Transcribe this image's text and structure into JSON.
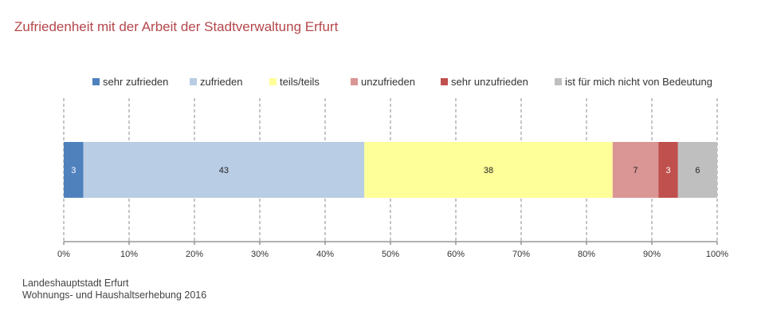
{
  "title": "Zufriedenheit mit der Arbeit der Stadtverwaltung Erfurt",
  "source": {
    "line1": "Landeshauptstadt Erfurt",
    "line2": "Wohnungs- und Haushaltserhebung 2016"
  },
  "chart_data": {
    "type": "bar",
    "orientation": "horizontal",
    "stacked": true,
    "percent_stacked": true,
    "categories": [
      ""
    ],
    "series": [
      {
        "name": "sehr zufrieden",
        "values": [
          3
        ],
        "color": "#4f81bd"
      },
      {
        "name": "zufrieden",
        "values": [
          43
        ],
        "color": "#b9cde5"
      },
      {
        "name": "teils/teils",
        "values": [
          38
        ],
        "color": "#ffff99"
      },
      {
        "name": "unzufrieden",
        "values": [
          7
        ],
        "color": "#d99694"
      },
      {
        "name": "sehr unzufrieden",
        "values": [
          3
        ],
        "color": "#c0504d"
      },
      {
        "name": "ist für mich nicht von Bedeutung",
        "values": [
          6
        ],
        "color": "#bfbfbf"
      }
    ],
    "xlim": [
      0,
      100
    ],
    "x_ticks": [
      "0%",
      "10%",
      "20%",
      "30%",
      "40%",
      "50%",
      "60%",
      "70%",
      "80%",
      "90%",
      "100%"
    ],
    "grid": "vertical-dashed",
    "legend_position": "top"
  }
}
